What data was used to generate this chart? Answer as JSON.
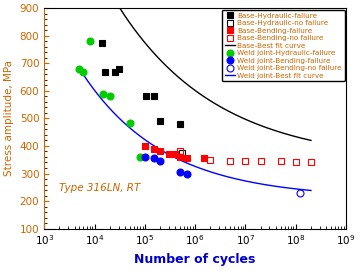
{
  "title": "",
  "xlabel": "Number of cycles",
  "ylabel": "Stress amplitude, MPa",
  "annotation": "Type 316LN, RT",
  "xlim": [
    1000.0,
    1000000000.0
  ],
  "ylim": [
    100,
    900
  ],
  "yticks": [
    100,
    200,
    300,
    400,
    500,
    600,
    700,
    800,
    900
  ],
  "base_hyd_failure": {
    "x": [
      14000.0,
      16000.0,
      25000.0,
      30000.0,
      105000.0,
      150000.0,
      200000.0,
      490000.0
    ],
    "y": [
      775,
      670,
      670,
      680,
      580,
      580,
      490,
      480
    ],
    "color": "black",
    "marker": "s",
    "fillstyle": "full",
    "label": "Base-Hydraulic-failure"
  },
  "base_hyd_no_failure": {
    "x": [
      550000.0
    ],
    "y": [
      375
    ],
    "color": "black",
    "marker": "s",
    "fillstyle": "none",
    "label": "Base-Hydraulic-no failure"
  },
  "base_bend_failure": {
    "x": [
      100000.0,
      150000.0,
      200000.0,
      300000.0,
      400000.0,
      500000.0,
      700000.0,
      1500000.0
    ],
    "y": [
      400,
      390,
      380,
      370,
      370,
      360,
      355,
      355
    ],
    "color": "red",
    "marker": "s",
    "fillstyle": "full",
    "label": "Base-Bending-failure"
  },
  "base_bend_no_failure": {
    "x": [
      500000.0,
      2000000.0,
      5000000.0,
      10000000.0,
      20000000.0,
      50000000.0,
      100000000.0,
      200000000.0
    ],
    "y": [
      380,
      350,
      345,
      345,
      345,
      345,
      340,
      340
    ],
    "color": "red",
    "marker": "s",
    "fillstyle": "none",
    "label": "Base-Bending-no failure"
  },
  "weld_hyd_failure": {
    "x": [
      5000,
      6000,
      8000,
      15000.0,
      20000.0,
      50000.0,
      80000.0
    ],
    "y": [
      680,
      670,
      780,
      590,
      580,
      485,
      360
    ],
    "color": "#00cc00",
    "marker": "o",
    "fillstyle": "full",
    "label": "Weld joint-Hydraulic-failure"
  },
  "weld_bend_failure": {
    "x": [
      100000.0,
      150000.0,
      200000.0,
      500000.0,
      700000.0
    ],
    "y": [
      360,
      355,
      345,
      305,
      300
    ],
    "color": "blue",
    "marker": "o",
    "fillstyle": "full",
    "label": "Weld joint-Bending-failure"
  },
  "weld_bend_no_failure": {
    "x": [
      120000000.0
    ],
    "y": [
      230
    ],
    "color": "blue",
    "marker": "o",
    "fillstyle": "none",
    "label": "Weld joint-Bending-no failure"
  },
  "base_fit_params": {
    "A": 5500,
    "b": -0.22,
    "S_inf": 338
  },
  "weld_fit_params": {
    "A": 4500,
    "b": -0.265,
    "S_inf": 210
  },
  "base_fit_label": "Base-Best fit curve",
  "weld_fit_label": "Weld joint-Best fit curve",
  "base_fit_color": "black",
  "weld_fit_color": "blue",
  "ylabel_color": "#cc6600",
  "ytick_color": "#cc6600",
  "xlabel_color": "#0000cc",
  "annotation_color": "#cc6600",
  "legend_text_color": "#cc6600"
}
